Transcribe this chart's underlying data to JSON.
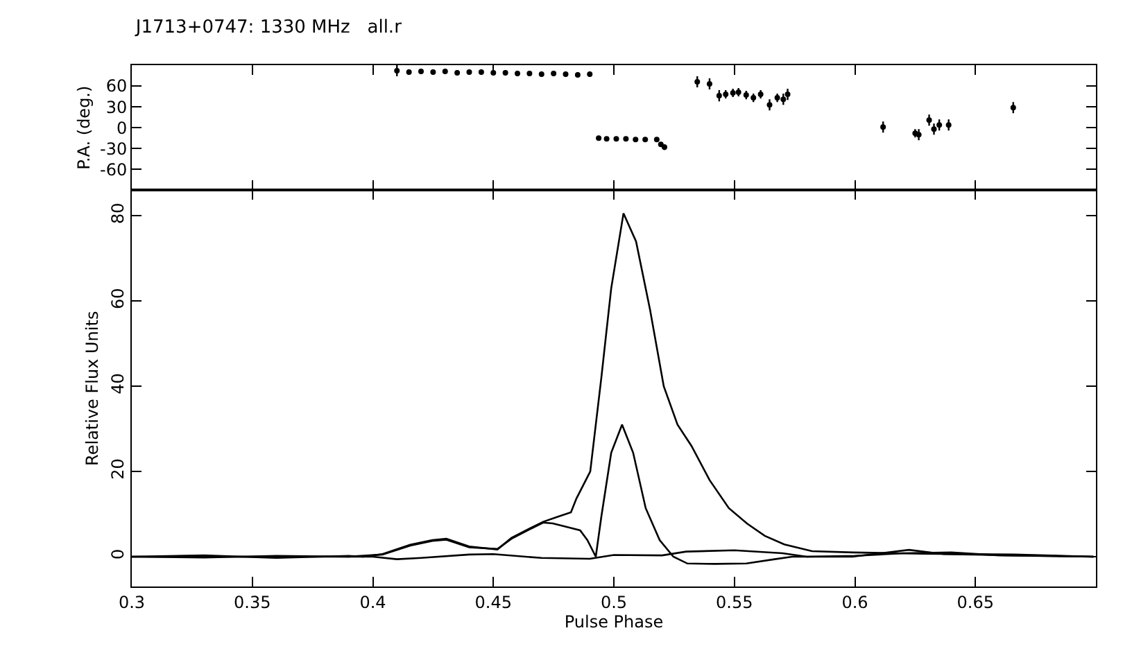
{
  "chart_data": [
    {
      "type": "scatter",
      "title": "J1713+0747: 1330 MHz   all.r",
      "ylabel": "P.A. (deg.)",
      "marker": "circle",
      "tick_labels": "y",
      "xlim": [
        0.3,
        0.7
      ],
      "xticks": [
        {
          "value": 0.3,
          "label": null
        },
        {
          "value": 0.35,
          "label": null
        },
        {
          "value": 0.4,
          "label": null
        },
        {
          "value": 0.45,
          "label": null
        },
        {
          "value": 0.5,
          "label": null
        },
        {
          "value": 0.55,
          "label": null
        },
        {
          "value": 0.6,
          "label": null
        },
        {
          "value": 0.65,
          "label": null
        }
      ],
      "ylim": [
        -90,
        90
      ],
      "yticks": [
        -60,
        -30,
        0,
        30,
        60
      ],
      "series": [
        {
          "color": "#000000",
          "x": [
            0.41,
            0.415,
            0.42,
            0.425,
            0.43,
            0.435,
            0.44,
            0.445,
            0.45,
            0.455,
            0.46,
            0.465,
            0.47,
            0.475,
            0.48,
            0.485,
            0.49,
            0.4937,
            0.497,
            0.501,
            0.505,
            0.509,
            0.513,
            0.5178,
            0.5195,
            0.521,
            0.5346,
            0.5397,
            0.5437,
            0.5464,
            0.5494,
            0.5517,
            0.5549,
            0.5579,
            0.5609,
            0.5646,
            0.5678,
            0.5703,
            0.5721,
            0.6117,
            0.625,
            0.6265,
            0.6308,
            0.6328,
            0.635,
            0.6389,
            0.6657
          ],
          "values": [
            82,
            80,
            81,
            80,
            81,
            79,
            80,
            80,
            79,
            79,
            78,
            78,
            77,
            78,
            77,
            76,
            77,
            -15,
            -16,
            -16,
            -16,
            -17,
            -17,
            -17,
            -24,
            -28,
            66,
            63,
            46,
            48,
            50,
            51,
            47,
            43,
            48,
            33,
            43,
            41,
            48,
            1,
            -8,
            -10,
            11,
            -2,
            4,
            4,
            29
          ],
          "errors": [
            8,
            4,
            4,
            4,
            4,
            4,
            4,
            4,
            4,
            4,
            4,
            4,
            4,
            4,
            4,
            4,
            4,
            1,
            1,
            1,
            1,
            1,
            1,
            1,
            3,
            4,
            8,
            8,
            8,
            6,
            6,
            6,
            6,
            6,
            6,
            8,
            6,
            8,
            8,
            8,
            6,
            8,
            8,
            8,
            8,
            8,
            8
          ]
        }
      ]
    },
    {
      "type": "line",
      "xlabel": "Pulse Phase",
      "ylabel": "Relative Flux Units",
      "line_style": "solid",
      "xlim": [
        0.3,
        0.7
      ],
      "xticks": [
        0.3,
        0.35,
        0.4,
        0.45,
        0.5,
        0.55,
        0.6,
        0.65
      ],
      "ylim": [
        -7,
        86
      ],
      "yticks": [
        0,
        20,
        40,
        60,
        80
      ],
      "series": [
        {
          "color": "#000000",
          "x": [
            0.3,
            0.33,
            0.36,
            0.39,
            0.396,
            0.404,
            0.4155,
            0.4247,
            0.4305,
            0.44,
            0.4517,
            0.4575,
            0.465,
            0.4707,
            0.4764,
            0.4822,
            0.4845,
            0.4902,
            0.4948,
            0.4989,
            0.504,
            0.5092,
            0.515,
            0.5207,
            0.5264,
            0.5322,
            0.5397,
            0.5477,
            0.5552,
            0.5626,
            0.5707,
            0.5822,
            0.5994,
            0.628,
            0.666,
            0.699
          ],
          "values": [
            0,
            0.3,
            -0.3,
            0.2,
            0,
            0.6,
            2.8,
            3.9,
            4.2,
            2.4,
            1.7,
            4.4,
            6.6,
            8.2,
            9.3,
            10.4,
            13.7,
            20,
            42,
            63,
            80.6,
            74,
            58,
            40,
            31,
            26,
            18,
            11.4,
            7.8,
            4.9,
            2.9,
            1.3,
            1,
            0.7,
            0.5,
            0
          ]
        },
        {
          "color": "#000000",
          "x": [
            0.3,
            0.33,
            0.36,
            0.39,
            0.404,
            0.4155,
            0.4247,
            0.4305,
            0.44,
            0.4517,
            0.4575,
            0.465,
            0.4707,
            0.4747,
            0.486,
            0.489,
            0.4925,
            0.4948,
            0.4989,
            0.5034,
            0.508,
            0.5132,
            0.519,
            0.5247,
            0.5305,
            0.542,
            0.555,
            0.5667,
            0.574,
            0.599,
            0.6224,
            0.637,
            0.699
          ],
          "values": [
            0,
            -0.2,
            0.2,
            0,
            0.5,
            2.6,
            3.7,
            4,
            2.2,
            1.8,
            4.2,
            6.4,
            8,
            7.8,
            6.2,
            3.9,
            0,
            9.4,
            24.4,
            31,
            24.4,
            11.4,
            3.9,
            0,
            -1.6,
            -1.7,
            -1.6,
            -0.6,
            0,
            0,
            1.6,
            0.6,
            0
          ]
        },
        {
          "color": "#000000",
          "x": [
            0.3,
            0.35,
            0.4,
            0.41,
            0.42,
            0.44,
            0.45,
            0.47,
            0.49,
            0.5,
            0.52,
            0.53,
            0.55,
            0.57,
            0.58,
            0.6,
            0.62,
            0.64,
            0.66,
            0.699
          ],
          "values": [
            0,
            0,
            0,
            -0.6,
            -0.3,
            0.5,
            0.6,
            -0.3,
            -0.5,
            0.4,
            0.3,
            1.2,
            1.5,
            0.8,
            0,
            0.2,
            0.8,
            1,
            0.3,
            0
          ]
        }
      ]
    }
  ]
}
